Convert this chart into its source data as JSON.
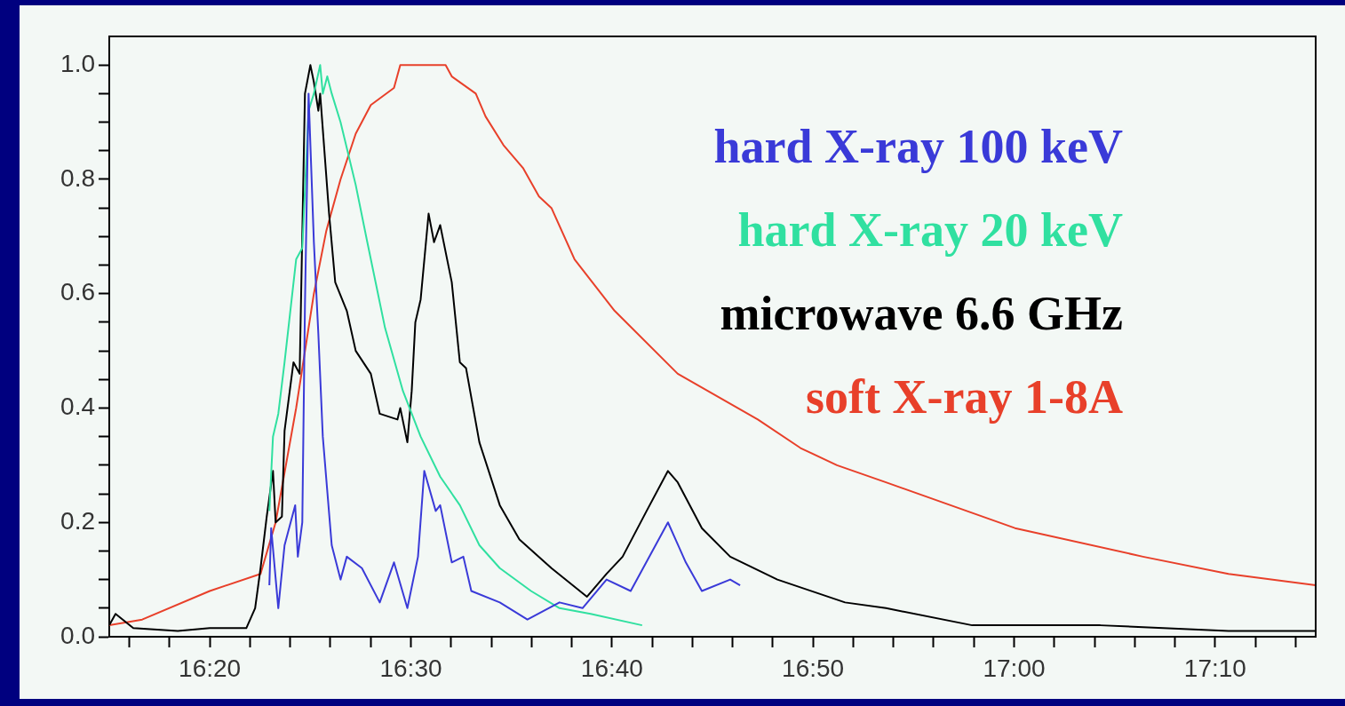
{
  "chart_data": {
    "type": "line",
    "xlim": [
      16.25,
      17.25
    ],
    "ylim": [
      0,
      1.05
    ],
    "xticks": [
      {
        "value": 16.2667,
        "label": null
      },
      {
        "value": 16.3,
        "label": null
      },
      {
        "value": 16.3333,
        "label": "16:20"
      },
      {
        "value": 16.3667,
        "label": null
      },
      {
        "value": 16.4,
        "label": null
      },
      {
        "value": 16.4333,
        "label": null
      },
      {
        "value": 16.4667,
        "label": null
      },
      {
        "value": 16.5,
        "label": "16:30"
      },
      {
        "value": 16.5333,
        "label": null
      },
      {
        "value": 16.5667,
        "label": null
      },
      {
        "value": 16.6,
        "label": null
      },
      {
        "value": 16.6333,
        "label": null
      },
      {
        "value": 16.6667,
        "label": "16:40"
      },
      {
        "value": 16.7,
        "label": null
      },
      {
        "value": 16.7333,
        "label": null
      },
      {
        "value": 16.7667,
        "label": null
      },
      {
        "value": 16.8,
        "label": null
      },
      {
        "value": 16.8333,
        "label": "16:50"
      },
      {
        "value": 16.8667,
        "label": null
      },
      {
        "value": 16.9,
        "label": null
      },
      {
        "value": 16.9333,
        "label": null
      },
      {
        "value": 16.9667,
        "label": null
      },
      {
        "value": 17,
        "label": "17:00"
      },
      {
        "value": 17.0333,
        "label": null
      },
      {
        "value": 17.0667,
        "label": null
      },
      {
        "value": 17.1,
        "label": null
      },
      {
        "value": 17.1333,
        "label": null
      },
      {
        "value": 17.1667,
        "label": "17:10"
      },
      {
        "value": 17.2,
        "label": null
      },
      {
        "value": 17.2333,
        "label": null
      }
    ],
    "yticks": [
      {
        "value": 0,
        "label": "0.0"
      },
      {
        "value": 0.05,
        "label": null
      },
      {
        "value": 0.1,
        "label": null
      },
      {
        "value": 0.15,
        "label": null
      },
      {
        "value": 0.2,
        "label": "0.2"
      },
      {
        "value": 0.25,
        "label": null
      },
      {
        "value": 0.3,
        "label": null
      },
      {
        "value": 0.35,
        "label": null
      },
      {
        "value": 0.4,
        "label": "0.4"
      },
      {
        "value": 0.45,
        "label": null
      },
      {
        "value": 0.5,
        "label": null
      },
      {
        "value": 0.55,
        "label": null
      },
      {
        "value": 0.6,
        "label": "0.6"
      },
      {
        "value": 0.65,
        "label": null
      },
      {
        "value": 0.7,
        "label": null
      },
      {
        "value": 0.75,
        "label": null
      },
      {
        "value": 0.8,
        "label": "0.8"
      },
      {
        "value": 0.85,
        "label": null
      },
      {
        "value": 0.9,
        "label": null
      },
      {
        "value": 0.95,
        "label": null
      },
      {
        "value": 1.0,
        "label": "1.0"
      }
    ],
    "legend": "top right",
    "series": [
      {
        "name": "hard X-ray 100 keV",
        "color": "#3a3ad8",
        "x": [
          16.3827,
          16.3842,
          16.3901,
          16.3953,
          16.4041,
          16.4063,
          16.41,
          16.4122,
          16.4152,
          16.4174,
          16.4196,
          16.4233,
          16.427,
          16.4344,
          16.4417,
          16.4469,
          16.4594,
          16.4742,
          16.486,
          16.4971,
          16.5059,
          16.5111,
          16.5206,
          16.5243,
          16.5339,
          16.5435,
          16.5501,
          16.5737,
          16.5966,
          16.6232,
          16.6423,
          16.6622,
          16.6822,
          16.7131,
          16.7279,
          16.7412,
          16.7647,
          16.7729
        ],
        "values": [
          0.09,
          0.19,
          0.05,
          0.16,
          0.23,
          0.14,
          0.2,
          0.58,
          0.95,
          0.82,
          0.69,
          0.53,
          0.35,
          0.16,
          0.1,
          0.14,
          0.12,
          0.06,
          0.13,
          0.05,
          0.14,
          0.29,
          0.22,
          0.23,
          0.13,
          0.14,
          0.08,
          0.06,
          0.03,
          0.06,
          0.05,
          0.1,
          0.08,
          0.2,
          0.13,
          0.08,
          0.1,
          0.09
        ]
      },
      {
        "name": "hard X-ray 20 keV",
        "color": "#30e0a0",
        "x": [
          16.3827,
          16.3857,
          16.3901,
          16.3953,
          16.4049,
          16.41,
          16.4152,
          16.4196,
          16.4248,
          16.427,
          16.4307,
          16.4344,
          16.4417,
          16.4543,
          16.4639,
          16.4786,
          16.4934,
          16.5081,
          16.5243,
          16.5406,
          16.5568,
          16.5737,
          16.5996,
          16.6232,
          16.649,
          16.6917
        ],
        "values": [
          0.22,
          0.35,
          0.39,
          0.48,
          0.66,
          0.68,
          0.92,
          0.95,
          1.0,
          0.95,
          0.98,
          0.95,
          0.9,
          0.79,
          0.69,
          0.54,
          0.43,
          0.35,
          0.28,
          0.23,
          0.16,
          0.12,
          0.08,
          0.05,
          0.04,
          0.02
        ]
      },
      {
        "name": "microwave 6.6 GHz",
        "color": "#000000",
        "x": [
          16.25,
          16.2552,
          16.2699,
          16.3068,
          16.3333,
          16.3636,
          16.3709,
          16.3754,
          16.3805,
          16.3857,
          16.3879,
          16.3931,
          16.3953,
          16.4027,
          16.4078,
          16.4122,
          16.4167,
          16.4196,
          16.4233,
          16.4248,
          16.4322,
          16.4373,
          16.4469,
          16.4543,
          16.4668,
          16.4742,
          16.4889,
          16.4912,
          16.4971,
          16.5007,
          16.5037,
          16.5081,
          16.5147,
          16.5192,
          16.5243,
          16.5339,
          16.5406,
          16.5457,
          16.5568,
          16.5737,
          16.59,
          16.6165,
          16.646,
          16.6622,
          16.6755,
          16.6954,
          16.7131,
          16.7212,
          16.7412,
          16.7647,
          16.8038,
          16.8599,
          16.8938,
          16.9653,
          17.0715,
          17.1777,
          17.25
        ],
        "values": [
          0.02,
          0.04,
          0.015,
          0.01,
          0.015,
          0.015,
          0.05,
          0.12,
          0.21,
          0.29,
          0.2,
          0.21,
          0.36,
          0.48,
          0.46,
          0.95,
          1.0,
          0.97,
          0.92,
          0.95,
          0.74,
          0.62,
          0.57,
          0.5,
          0.46,
          0.39,
          0.38,
          0.4,
          0.34,
          0.43,
          0.55,
          0.59,
          0.74,
          0.69,
          0.72,
          0.62,
          0.48,
          0.47,
          0.34,
          0.23,
          0.17,
          0.12,
          0.07,
          0.11,
          0.14,
          0.22,
          0.29,
          0.27,
          0.19,
          0.14,
          0.1,
          0.06,
          0.05,
          0.02,
          0.02,
          0.01,
          0.01
        ]
      },
      {
        "name": "soft X-ray 1-8A",
        "color": "#e8402a",
        "x": [
          16.25,
          16.2773,
          16.3333,
          16.3754,
          16.3879,
          16.4049,
          16.4196,
          16.4299,
          16.4417,
          16.4543,
          16.4668,
          16.486,
          16.4912,
          16.5288,
          16.5339,
          16.5538,
          16.5619,
          16.5767,
          16.5929,
          16.6062,
          16.6165,
          16.6357,
          16.6689,
          16.7212,
          16.7876,
          16.823,
          16.8532,
          16.8938,
          17.0007,
          17.1069,
          17.1777,
          17.25
        ],
        "values": [
          0.02,
          0.03,
          0.08,
          0.11,
          0.2,
          0.4,
          0.6,
          0.71,
          0.8,
          0.88,
          0.93,
          0.96,
          1.0,
          1.0,
          0.98,
          0.95,
          0.91,
          0.86,
          0.82,
          0.77,
          0.75,
          0.66,
          0.57,
          0.46,
          0.38,
          0.33,
          0.3,
          0.27,
          0.19,
          0.14,
          0.11,
          0.09
        ]
      }
    ]
  }
}
